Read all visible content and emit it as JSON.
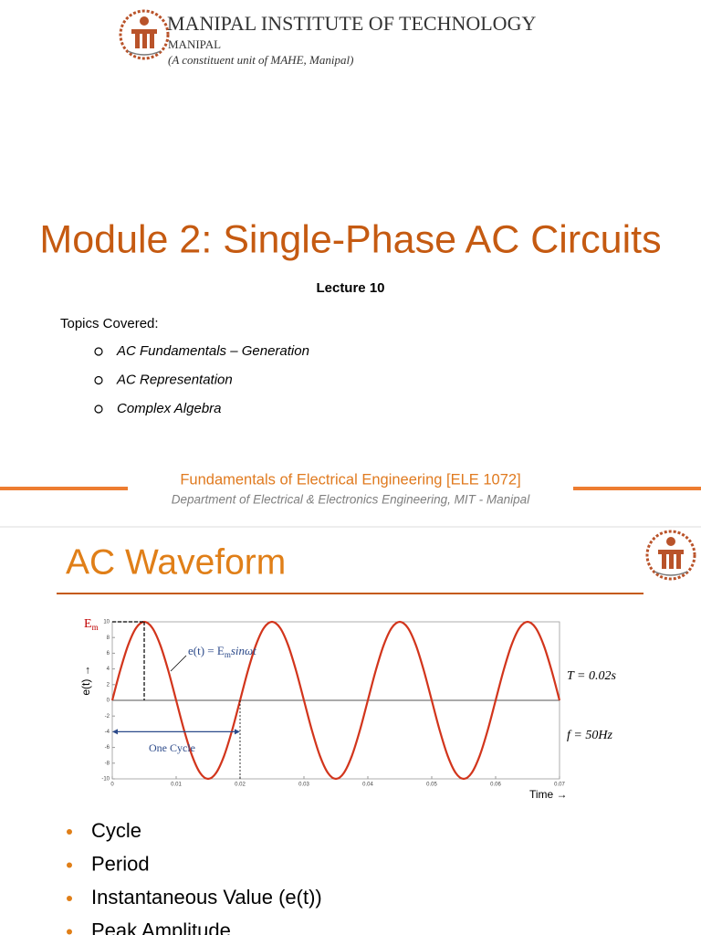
{
  "slide1": {
    "institute": "MANIPAL INSTITUTE OF TECHNOLOGY",
    "place": "MANIPAL",
    "constituent": "(A constituent unit of MAHE, Manipal)",
    "title": "Module 2: Single-Phase AC Circuits",
    "lecture": "Lecture 10",
    "topics_heading": "Topics Covered:",
    "topics": [
      "AC Fundamentals – Generation",
      "AC Representation",
      "Complex Algebra"
    ],
    "course": "Fundamentals of Electrical Engineering [ELE 1072]",
    "department": "Department of Electrical & Electronics Engineering, MIT - Manipal"
  },
  "slide2": {
    "title": "AC Waveform",
    "figure": {
      "type": "line",
      "color": "#d2351c",
      "peak_label": {
        "base": "E",
        "sub": "m"
      },
      "equation": {
        "lhs": "e(t) = E",
        "sub": "m",
        "rhs": "sinωt"
      },
      "cycle_label": "One Cycle",
      "y_label": "e(t) →",
      "x_label": "Time →",
      "period": "T = 0.02s",
      "frequency": "f = 50Hz",
      "xlim": [
        0,
        0.07
      ],
      "ylim": [
        -10,
        10
      ],
      "xticks": [
        0,
        0.01,
        0.02,
        0.03,
        0.04,
        0.05,
        0.06,
        0.07
      ],
      "yticks": [
        -10,
        -8,
        -6,
        -4,
        -2,
        0,
        2,
        4,
        6,
        8,
        10
      ],
      "x": [
        0,
        0.00125,
        0.0025,
        0.00375,
        0.005,
        0.00625,
        0.0075,
        0.00875,
        0.01,
        0.01125,
        0.0125,
        0.01375,
        0.015,
        0.01625,
        0.0175,
        0.01875,
        0.02,
        0.02125,
        0.0225,
        0.02375,
        0.025,
        0.02625,
        0.0275,
        0.02875,
        0.03,
        0.03125,
        0.0325,
        0.03375,
        0.035,
        0.03625,
        0.0375,
        0.03875,
        0.04,
        0.04125,
        0.0425,
        0.04375,
        0.045,
        0.04625,
        0.0475,
        0.04875,
        0.05,
        0.05125,
        0.0525,
        0.05375,
        0.055,
        0.05625,
        0.0575,
        0.05875,
        0.06,
        0.06125,
        0.0625,
        0.06375,
        0.065,
        0.06625,
        0.0675,
        0.06875,
        0.07
      ],
      "values": [
        0,
        3.83,
        7.07,
        9.24,
        10,
        9.24,
        7.07,
        3.83,
        0,
        -3.83,
        -7.07,
        -9.24,
        -10,
        -9.24,
        -7.07,
        -3.83,
        0,
        3.83,
        7.07,
        9.24,
        10,
        9.24,
        7.07,
        3.83,
        0,
        -3.83,
        -7.07,
        -9.24,
        -10,
        -9.24,
        -7.07,
        -3.83,
        0,
        3.83,
        7.07,
        9.24,
        10,
        9.24,
        7.07,
        3.83,
        0,
        -3.83,
        -7.07,
        -9.24,
        -10,
        -9.24,
        -7.07,
        -3.83,
        0,
        3.83,
        7.07,
        9.24,
        10,
        9.24,
        7.07,
        3.83,
        0
      ]
    },
    "bullets": [
      "Cycle",
      "Period",
      "Instantaneous Value (e(t))",
      "Peak Amplitude"
    ]
  }
}
